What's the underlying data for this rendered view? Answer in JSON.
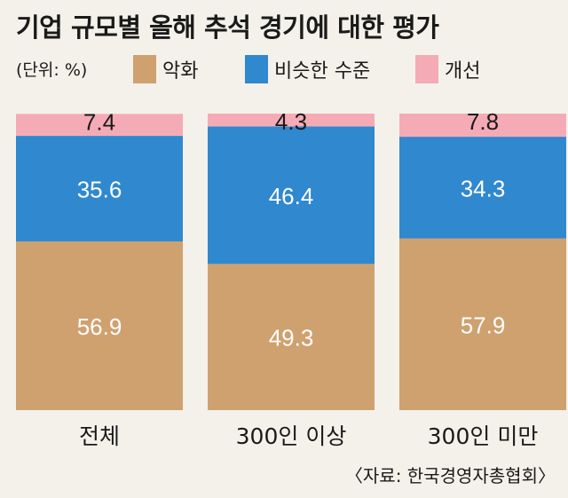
{
  "title": "기업 규모별 올해 추석 경기에 대한 평가",
  "unit": "(단위: %)",
  "source": "〈자료: 한국경영자총협회〉",
  "legend": [
    {
      "label": "악화",
      "color": "#cfa16f"
    },
    {
      "label": "비슷한 수준",
      "color": "#3088cf"
    },
    {
      "label": "개선",
      "color": "#f5abb5"
    }
  ],
  "chart_data": {
    "type": "bar",
    "stacked": true,
    "categories": [
      "전체",
      "300인 이상",
      "300인 미만"
    ],
    "series": [
      {
        "name": "악화",
        "values": [
          56.9,
          49.3,
          57.9
        ],
        "color": "#cfa16f"
      },
      {
        "name": "비슷한 수준",
        "values": [
          35.6,
          46.4,
          34.3
        ],
        "color": "#3088cf"
      },
      {
        "name": "개선",
        "values": [
          7.4,
          4.3,
          7.8
        ],
        "color": "#f5abb5"
      }
    ],
    "ylim": [
      0,
      100
    ],
    "grid": false,
    "legend_position": "top"
  }
}
